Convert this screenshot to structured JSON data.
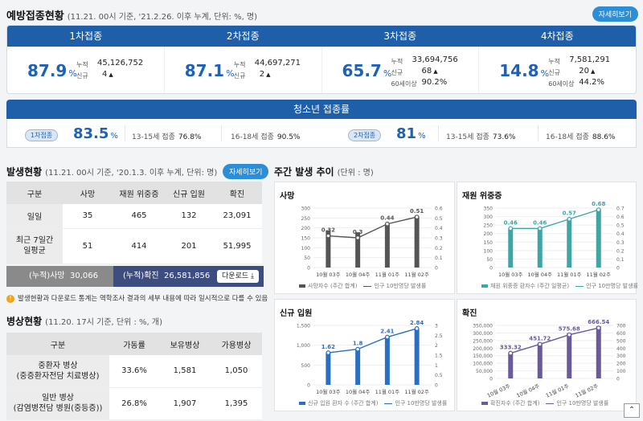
{
  "vaccination": {
    "title": "예방접종현황",
    "subtitle": "(11.21. 00시 기준, '21.2.26. 이후 누계, 단위: %, 명)",
    "detail_label": "자세히보기",
    "doses": [
      {
        "label": "1차접종",
        "rate": "87.9",
        "unit": "%",
        "cum_label": "누적",
        "cum": "45,126,752",
        "new_label": "신규",
        "new": "4",
        "extra_label": "",
        "extra": ""
      },
      {
        "label": "2차접종",
        "rate": "87.1",
        "unit": "%",
        "cum_label": "누적",
        "cum": "44,697,271",
        "new_label": "신규",
        "new": "2",
        "extra_label": "",
        "extra": ""
      },
      {
        "label": "3차접종",
        "rate": "65.7",
        "unit": "%",
        "cum_label": "누적",
        "cum": "33,694,756",
        "new_label": "신규",
        "new": "68",
        "extra_label": "60세이상",
        "extra": "90.2%"
      },
      {
        "label": "4차접종",
        "rate": "14.8",
        "unit": "%",
        "cum_label": "누적",
        "cum": "7,581,291",
        "new_label": "신규",
        "new": "20",
        "extra_label": "60세이상",
        "extra": "44.2%"
      }
    ],
    "up_arrow": "▲"
  },
  "teen": {
    "title": "청소년 접종률",
    "groups": [
      {
        "tag": "1차접종",
        "rate": "83.5",
        "unit": "%",
        "a_label": "13-15세",
        "a_suffix": "접종",
        "a_val": "76.8%",
        "b_label": "16-18세",
        "b_suffix": "접종",
        "b_val": "90.5%"
      },
      {
        "tag": "2차접종",
        "rate": "81",
        "unit": "%",
        "a_label": "13-15세",
        "a_suffix": "접종",
        "a_val": "73.6%",
        "b_label": "16-18세",
        "b_suffix": "접종",
        "b_val": "88.6%"
      }
    ]
  },
  "outbreak": {
    "title": "발생현황",
    "subtitle": "(11.21. 00시 기준, '20.1.3. 이후 누계, 단위: 명)",
    "detail_label": "자세히보기",
    "headers": [
      "구분",
      "사망",
      "재원 위중증",
      "신규 입원",
      "확진"
    ],
    "rows": [
      {
        "label": "일일",
        "cells": [
          "35",
          "465",
          "132",
          "23,091"
        ]
      },
      {
        "label": "최근 7일간\n일평균",
        "cells": [
          "51",
          "414",
          "201",
          "51,995"
        ]
      }
    ],
    "cum_death_label": "(누적)사망",
    "cum_death": "30,066",
    "cum_confirm_label": "(누적)확진",
    "cum_confirm": "26,581,856",
    "download_label": "다운로드 ⤓",
    "note_icon": "!",
    "note": "발생현황과 다운로드 통계는 역학조사 결과의 세부 내용에 따라 일시적으로 다를 수 있음"
  },
  "beds": {
    "title": "병상현황",
    "subtitle": "(11.20. 17시 기준, 단위 : %, 개)",
    "headers": [
      "구분",
      "가동률",
      "보유병상",
      "가용병상"
    ],
    "rows": [
      {
        "label1": "중환자 병상",
        "label2": "(중증환자전담 치료병상)",
        "cells": [
          "33.6%",
          "1,581",
          "1,050"
        ]
      },
      {
        "label1": "일반 병상",
        "label2": "(감염병전담 병원(중등증))",
        "cells": [
          "26.8%",
          "1,907",
          "1,395"
        ]
      }
    ]
  },
  "weekly": {
    "title": "주간 발생 추이",
    "subtitle": "(단위 : 명)"
  },
  "chart_data": [
    {
      "type": "bar",
      "title": "사망",
      "categories": [
        "10월 03주",
        "10월 04주",
        "11월 01주",
        "11월 02주"
      ],
      "series": [
        {
          "name": "사망자수 (주간 합계)",
          "values": [
            188,
            178,
            218,
            256
          ]
        },
        {
          "name": "인구 10만명당 발생률",
          "values": [
            0.32,
            0.3,
            0.44,
            0.51
          ]
        }
      ],
      "ylim_left": [
        0,
        300
      ],
      "yticks_left": [
        "0",
        "50",
        "100",
        "150",
        "200",
        "250",
        "300"
      ],
      "ylim_right": [
        0,
        0.6
      ],
      "yticks_right": [
        "0",
        "0.1",
        "0.2",
        "0.3",
        "0.4",
        "0.5",
        "0.6"
      ],
      "bar_color": "#555555",
      "line_color": "#555555"
    },
    {
      "type": "bar",
      "title": "재원 위중증",
      "categories": [
        "10월 03주",
        "10월 04주",
        "11월 01주",
        "11월 02주"
      ],
      "series": [
        {
          "name": "재원 위중증 환자수 (주간 일평균)",
          "values": [
            230,
            230,
            290,
            345
          ]
        },
        {
          "name": "인구 10만명당 발생률",
          "values": [
            0.46,
            0.46,
            0.57,
            0.68
          ]
        }
      ],
      "ylim_left": [
        0,
        350
      ],
      "yticks_left": [
        "0",
        "50",
        "100",
        "150",
        "200",
        "250",
        "300",
        "350"
      ],
      "ylim_right": [
        0,
        0.7
      ],
      "yticks_right": [
        "0",
        "0.1",
        "0.2",
        "0.3",
        "0.4",
        "0.5",
        "0.6",
        "0.7"
      ],
      "bar_color": "#3fa5a5",
      "line_color": "#3fa5a5"
    },
    {
      "type": "bar",
      "title": "신규 입원",
      "categories": [
        "10월 03주",
        "10월 04주",
        "11월 01주",
        "11월 02주"
      ],
      "series": [
        {
          "name": "신규 입원 환자 수 (주간 합계)",
          "values": [
            820,
            900,
            1200,
            1410
          ]
        },
        {
          "name": "인구 10만명당 발생률",
          "values": [
            1.62,
            1.8,
            2.41,
            2.84
          ]
        }
      ],
      "ylim_left": [
        0,
        1500
      ],
      "yticks_left": [
        "0",
        "500",
        "1,000",
        "1,500"
      ],
      "ylim_right": [
        0,
        3
      ],
      "yticks_right": [
        "0",
        "0.5",
        "1",
        "1.5",
        "2",
        "2.5",
        "3"
      ],
      "bar_color": "#2b6fc4",
      "line_color": "#2b6fc4"
    },
    {
      "type": "bar",
      "title": "확진",
      "categories": [
        "10월 03주",
        "10월 04주",
        "11월 01주",
        "11월 02주"
      ],
      "series": [
        {
          "name": "확진자수 (주간 합계)",
          "values": [
            172000,
            235000,
            298000,
            345000
          ]
        },
        {
          "name": "인구 10만명당 발생률",
          "values": [
            333.32,
            451.72,
            575.68,
            666.54
          ]
        }
      ],
      "ylim_left": [
        0,
        350000
      ],
      "yticks_left": [
        "0",
        "50,000",
        "100,000",
        "150,000",
        "200,000",
        "250,000",
        "300,000",
        "350,000"
      ],
      "ylim_right": [
        0,
        700
      ],
      "yticks_right": [
        "0",
        "100",
        "200",
        "300",
        "400",
        "500",
        "600",
        "700"
      ],
      "bar_color": "#6a5a9a",
      "line_color": "#6a5a9a",
      "rotate_x": true
    }
  ],
  "top_button": "⌃"
}
